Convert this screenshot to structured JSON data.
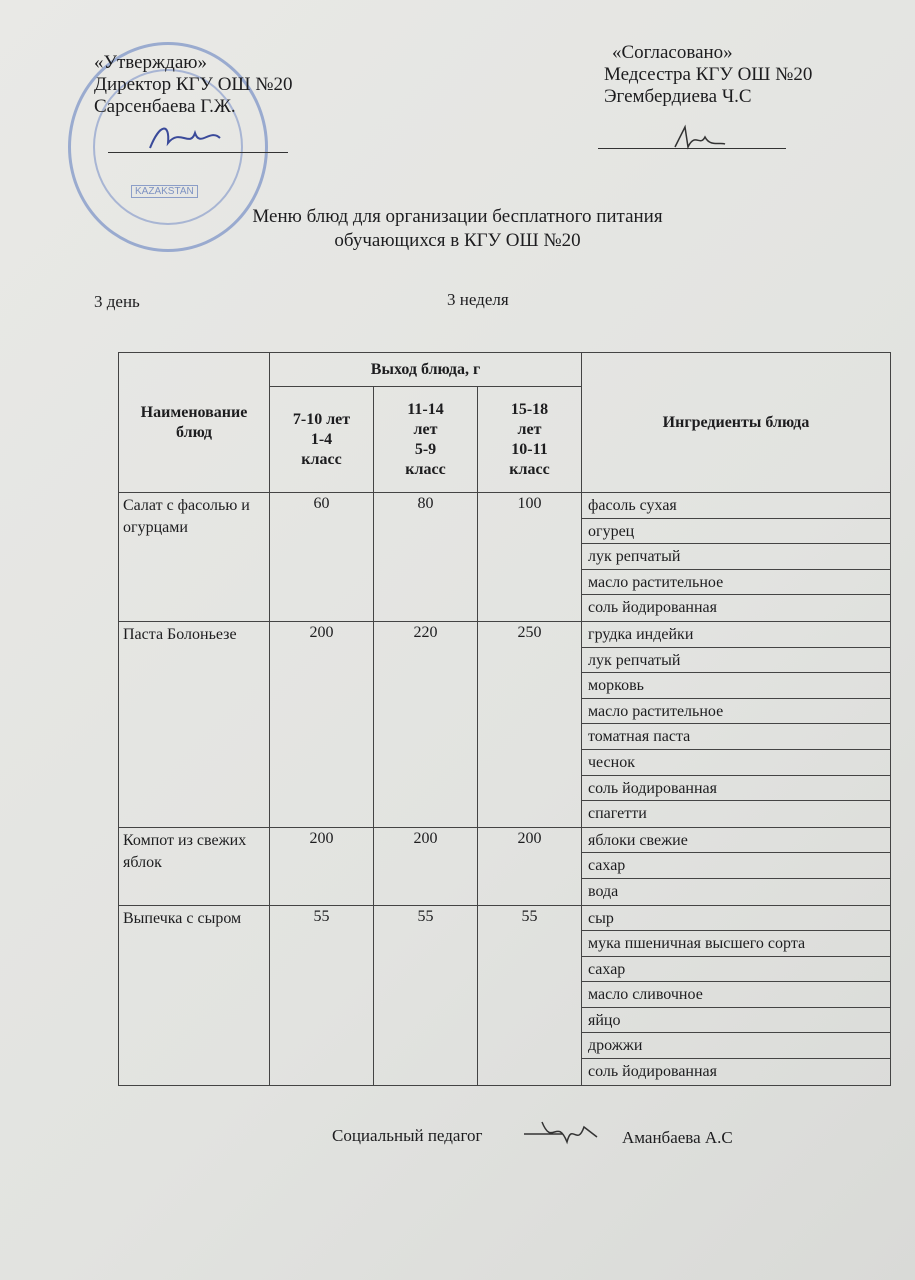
{
  "approved": {
    "heading": "«Утверждаю»",
    "position": "Директор КГУ ОШ №20",
    "name": "Сарсенбаева Г.Ж.",
    "stamp_text": "KAZAKSTAN"
  },
  "agreed": {
    "heading": "«Согласовано»",
    "position": "Медсестра КГУ ОШ №20",
    "name": "Эгембердиева Ч.С"
  },
  "title": {
    "line1": "Меню блюд для организации бесплатного питания",
    "line2": "обучающихся в КГУ ОШ №20"
  },
  "day": "3 день",
  "week": "3 неделя",
  "table": {
    "col_name": "Наименование блюд",
    "col_output": "Выход блюда, г",
    "col_ages": [
      [
        "7-10 лет",
        "1-4",
        "класс"
      ],
      [
        "11-14",
        "лет",
        "5-9",
        "класс"
      ],
      [
        "15-18",
        "лет",
        "10-11",
        "класс"
      ]
    ],
    "col_ingredients": "Ингредиенты блюда",
    "rows": [
      {
        "name": "Салат с фасолью и огурцами",
        "values": [
          "60",
          "80",
          "100"
        ],
        "ingredients": [
          "фасоль сухая",
          "огурец",
          "лук репчатый",
          "масло растительное",
          "соль йодированная"
        ]
      },
      {
        "name": "Паста Болоньезе",
        "values": [
          "200",
          "220",
          "250"
        ],
        "ingredients": [
          "грудка индейки",
          "лук репчатый",
          "морковь",
          "масло растительное",
          "томатная паста",
          "чеснок",
          "соль йодированная",
          "спагетти"
        ]
      },
      {
        "name": "Компот из свежих яблок",
        "values": [
          "200",
          "200",
          "200"
        ],
        "ingredients": [
          "яблоки свежие",
          "сахар",
          "вода"
        ]
      },
      {
        "name": "Выпечка с сыром",
        "values": [
          "55",
          "55",
          "55"
        ],
        "ingredients": [
          "сыр",
          "мука пшеничная высшего сорта",
          "сахар",
          "масло сливочное",
          "яйцо",
          "дрожжи",
          "соль йодированная"
        ]
      }
    ]
  },
  "footer": {
    "role": "Социальный педагог",
    "name": "Аманбаева А.С"
  }
}
